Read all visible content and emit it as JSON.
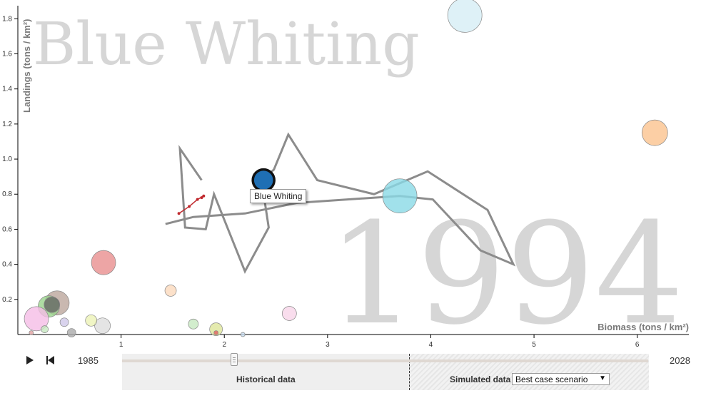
{
  "colors": {
    "background_text": "#d6d6d6",
    "trail": "#8c8c8c",
    "highlight": "#1f6fb4"
  },
  "chart_data": {
    "type": "scatter",
    "background_title": "Blue Whiting",
    "background_year": "1994",
    "xlabel": "Biomass (tons / km²)",
    "ylabel": "Landings (tons / km²)",
    "xlim": [
      0,
      6.5
    ],
    "ylim": [
      0,
      1.85
    ],
    "x_ticks": [
      1,
      2,
      3,
      4,
      5,
      6
    ],
    "y_ticks": [
      "0.2",
      "0.4",
      "0.6",
      "0.8",
      "1.0",
      "1.2",
      "1.4",
      "1.6",
      "1.8"
    ],
    "points": [
      {
        "name": "Blue Whiting",
        "x": 2.38,
        "y": 0.88,
        "r": 15,
        "color": "#1f6fb4",
        "highlight": true
      },
      {
        "x": 4.33,
        "y": 1.82,
        "r": 24,
        "color": "#d6eef5"
      },
      {
        "x": 6.17,
        "y": 1.15,
        "r": 18,
        "color": "#fbc38e"
      },
      {
        "x": 3.7,
        "y": 0.79,
        "r": 24,
        "color": "#89d9e6"
      },
      {
        "x": 0.83,
        "y": 0.41,
        "r": 17,
        "color": "#e88e8e"
      },
      {
        "x": 0.38,
        "y": 0.18,
        "r": 17,
        "color": "#bca69c"
      },
      {
        "x": 0.3,
        "y": 0.16,
        "r": 15,
        "color": "#9ad58c"
      },
      {
        "x": 0.18,
        "y": 0.09,
        "r": 17,
        "color": "#f5bde6"
      },
      {
        "x": 0.33,
        "y": 0.17,
        "r": 11,
        "color": "#666666"
      },
      {
        "x": 0.26,
        "y": 0.03,
        "r": 5,
        "color": "#c7e9c0"
      },
      {
        "x": 0.13,
        "y": 0.01,
        "r": 3,
        "color": "#e0a0a0"
      },
      {
        "x": 0.45,
        "y": 0.07,
        "r": 6,
        "color": "#d0c8e8"
      },
      {
        "x": 0.52,
        "y": 0.01,
        "r": 6,
        "color": "#aaaaaa"
      },
      {
        "x": 0.82,
        "y": 0.05,
        "r": 11,
        "color": "#dddddd"
      },
      {
        "x": 0.71,
        "y": 0.08,
        "r": 8,
        "color": "#ecf2b7"
      },
      {
        "x": 1.48,
        "y": 0.25,
        "r": 8,
        "color": "#fbd9bd"
      },
      {
        "x": 1.7,
        "y": 0.06,
        "r": 7,
        "color": "#c7e9c0"
      },
      {
        "x": 1.92,
        "y": 0.03,
        "r": 9,
        "color": "#dde59a"
      },
      {
        "x": 1.92,
        "y": 0.01,
        "r": 3,
        "color": "#e06060"
      },
      {
        "x": 2.18,
        "y": 0.0,
        "r": 3,
        "color": "#c6dbef"
      },
      {
        "x": 2.63,
        "y": 0.12,
        "r": 10,
        "color": "#f8d4e8"
      }
    ],
    "trail": [
      [
        1.78,
        0.88
      ],
      [
        1.57,
        1.06
      ],
      [
        1.62,
        0.61
      ],
      [
        1.82,
        0.6
      ],
      [
        1.9,
        0.8
      ],
      [
        2.2,
        0.36
      ],
      [
        2.43,
        0.61
      ],
      [
        2.36,
        0.88
      ],
      [
        2.48,
        0.94
      ],
      [
        2.62,
        1.14
      ],
      [
        2.9,
        0.88
      ],
      [
        3.45,
        0.8
      ],
      [
        3.97,
        0.93
      ],
      [
        4.55,
        0.71
      ],
      [
        4.8,
        0.4
      ],
      [
        4.48,
        0.48
      ],
      [
        4.02,
        0.77
      ],
      [
        3.7,
        0.79
      ],
      [
        2.7,
        0.75
      ],
      [
        2.2,
        0.69
      ],
      [
        1.7,
        0.67
      ],
      [
        1.43,
        0.63
      ]
    ],
    "red_trail": [
      [
        1.56,
        0.69
      ],
      [
        1.66,
        0.73
      ],
      [
        1.74,
        0.77
      ],
      [
        1.8,
        0.79
      ],
      [
        1.78,
        0.78
      ]
    ]
  },
  "tooltip": {
    "text": "Blue Whiting"
  },
  "timeline": {
    "start_year": "1985",
    "end_year": "2028",
    "historical_label": "Historical data",
    "simulated_label": "Simulated data",
    "scenario": "Best case scenario",
    "position": 0.2
  }
}
